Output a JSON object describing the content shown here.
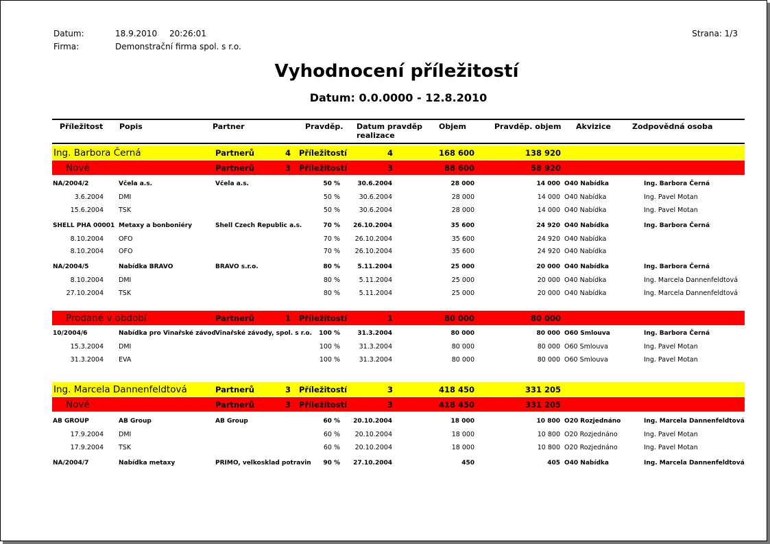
{
  "header": {
    "date_label": "Datum:",
    "date_value": "18.9.2010",
    "time_value": "20:26:01",
    "company_label": "Firma:",
    "company_value": "Demonstrační firma spol. s r.o.",
    "page": "Strana: 1/3",
    "title": "Vyhodnocení příležitostí",
    "subtitle": "Datum: 0.0.0000 - 12.8.2010"
  },
  "columns": {
    "prilezitost": "Příležitost",
    "popis": "Popis",
    "partner": "Partner",
    "pravdep": "Pravděp.",
    "datum_line1": "Datum pravděp",
    "datum_line2": "realizace",
    "objem": "Objem",
    "pravdep_objem": "Pravděp. objem",
    "akvizice": "Akvizice",
    "osoba": "Zodpovědná osoba"
  },
  "colors": {
    "group": "#ffff00",
    "subgroup": "#ff0000"
  },
  "rows": [
    {
      "type": "group",
      "name": "Ing. Barbora Černá",
      "partneru_label": "Partnerů",
      "partneru": "4",
      "prilezitosti_label": "Příležitostí",
      "prilezitosti": "4",
      "objem": "168 600",
      "pobjem": "138 920"
    },
    {
      "type": "subgroup",
      "name": "Nové",
      "partneru_label": "Partnerů",
      "partneru": "3",
      "prilezitosti_label": "Příležitostí",
      "prilezitosti": "3",
      "objem": "88 600",
      "pobjem": "58 920"
    },
    {
      "type": "opp",
      "id": "NA/2004/2",
      "popis": "Včela a.s.",
      "partner": "Včela a.s.",
      "pct": "50 %",
      "datum": "30.6.2004",
      "objem": "28 000",
      "pobjem": "14 000",
      "akvizice": "O40 Nabídka",
      "osoba": "Ing. Barbora Černá"
    },
    {
      "type": "detail",
      "id": "3.6.2004",
      "popis": "DMI",
      "partner": "",
      "pct": "50 %",
      "datum": "30.6.2004",
      "objem": "28 000",
      "pobjem": "14 000",
      "akvizice": "O40 Nabídka",
      "osoba": "Ing. Pavel Motan"
    },
    {
      "type": "detail",
      "id": "15.6.2004",
      "popis": "TSK",
      "partner": "",
      "pct": "50 %",
      "datum": "30.6.2004",
      "objem": "28 000",
      "pobjem": "14 000",
      "akvizice": "O40 Nabídka",
      "osoba": "Ing. Pavel Motan"
    },
    {
      "type": "opp",
      "id": "SHELL PHA   00001",
      "popis": "Metaxy a bonboniéry",
      "partner": "Shell Czech Republic a.s.",
      "pct": "70 %",
      "datum": "26.10.2004",
      "objem": "35 600",
      "pobjem": "24 920",
      "akvizice": "O40 Nabídka",
      "osoba": "Ing. Barbora Černá"
    },
    {
      "type": "detail",
      "id": "8.10.2004",
      "popis": "OFO",
      "partner": "",
      "pct": "70 %",
      "datum": "26.10.2004",
      "objem": "35 600",
      "pobjem": "24 920",
      "akvizice": "O40 Nabídka",
      "osoba": ""
    },
    {
      "type": "detail",
      "id": "8.10.2004",
      "popis": "OFO",
      "partner": "",
      "pct": "70 %",
      "datum": "26.10.2004",
      "objem": "35 600",
      "pobjem": "24 920",
      "akvizice": "O40 Nabídka",
      "osoba": ""
    },
    {
      "type": "opp",
      "id": "NA/2004/5",
      "popis": "Nabídka BRAVO",
      "partner": "BRAVO s.r.o.",
      "pct": "80 %",
      "datum": "5.11.2004",
      "objem": "25 000",
      "pobjem": "20 000",
      "akvizice": "O40 Nabídka",
      "osoba": "Ing. Barbora Černá"
    },
    {
      "type": "detail",
      "id": "8.10.2004",
      "popis": "DMI",
      "partner": "",
      "pct": "80 %",
      "datum": "5.11.2004",
      "objem": "25 000",
      "pobjem": "20 000",
      "akvizice": "O40 Nabídka",
      "osoba": "Ing. Marcela Dannenfeldtová"
    },
    {
      "type": "detail",
      "id": "27.10.2004",
      "popis": "TSK",
      "partner": "",
      "pct": "80 %",
      "datum": "5.11.2004",
      "objem": "25 000",
      "pobjem": "20 000",
      "akvizice": "O40 Nabídka",
      "osoba": "Ing. Marcela Dannenfeldtová"
    },
    {
      "type": "subgroup",
      "name": "Prodané v období",
      "partneru_label": "Partnerů",
      "partneru": "1",
      "prilezitosti_label": "Příležitostí",
      "prilezitosti": "1",
      "objem": "80 000",
      "pobjem": "80 000"
    },
    {
      "type": "opp",
      "id": "10/2004/6",
      "popis": "Nabídka pro Vinařské závody",
      "partner": "Vinařské závody, spol. s r.o.",
      "pct": "100 %",
      "datum": "31.3.2004",
      "objem": "80 000",
      "pobjem": "80 000",
      "akvizice": "O60 Smlouva",
      "osoba": "Ing. Barbora Černá"
    },
    {
      "type": "detail",
      "id": "15.3.2004",
      "popis": "DMI",
      "partner": "",
      "pct": "100 %",
      "datum": "31.3.2004",
      "objem": "80 000",
      "pobjem": "80 000",
      "akvizice": "O60 Smlouva",
      "osoba": "Ing. Pavel Motan"
    },
    {
      "type": "detail",
      "id": "31.3.2004",
      "popis": "EVA",
      "partner": "",
      "pct": "100 %",
      "datum": "31.3.2004",
      "objem": "80 000",
      "pobjem": "80 000",
      "akvizice": "O60 Smlouva",
      "osoba": "Ing. Pavel Motan"
    },
    {
      "type": "group",
      "name": "Ing. Marcela Dannenfeldtová",
      "partneru_label": "Partnerů",
      "partneru": "3",
      "prilezitosti_label": "Příležitostí",
      "prilezitosti": "3",
      "objem": "418 450",
      "pobjem": "331 205"
    },
    {
      "type": "subgroup",
      "name": "Nové",
      "partneru_label": "Partnerů",
      "partneru": "3",
      "prilezitosti_label": "Příležitostí",
      "prilezitosti": "3",
      "objem": "418 450",
      "pobjem": "331 205"
    },
    {
      "type": "opp",
      "id": "AB GROUP",
      "popis": "AB Group",
      "partner": "AB Group",
      "pct": "60 %",
      "datum": "20.10.2004",
      "objem": "18 000",
      "pobjem": "10 800",
      "akvizice": "O20 Rozjednáno",
      "osoba": "Ing. Marcela Dannenfeldtová"
    },
    {
      "type": "detail",
      "id": "17.9.2004",
      "popis": "DMI",
      "partner": "",
      "pct": "60 %",
      "datum": "20.10.2004",
      "objem": "18 000",
      "pobjem": "10 800",
      "akvizice": "O20 Rozjednáno",
      "osoba": "Ing. Pavel Motan"
    },
    {
      "type": "detail",
      "id": "17.9.2004",
      "popis": "TSK",
      "partner": "",
      "pct": "60 %",
      "datum": "20.10.2004",
      "objem": "18 000",
      "pobjem": "10 800",
      "akvizice": "O20 Rozjednáno",
      "osoba": "Ing. Pavel Motan"
    },
    {
      "type": "opp",
      "id": "NA/2004/7",
      "popis": "Nabídka metaxy",
      "partner": "PRIMO, velkosklad potravin",
      "pct": "90 %",
      "datum": "27.10.2004",
      "objem": "450",
      "pobjem": "405",
      "akvizice": "O40 Nabídka",
      "osoba": "Ing. Marcela Dannenfeldtová"
    }
  ]
}
